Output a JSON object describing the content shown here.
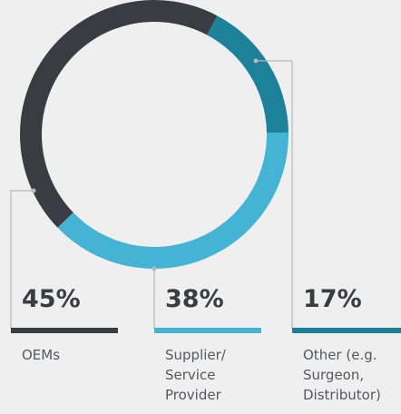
{
  "chart_data": {
    "type": "pie",
    "donut": true,
    "categories": [
      "OEMs",
      "Supplier/ Service Provider",
      "Other (e.g. Surgeon, Distributor)"
    ],
    "values": [
      45,
      38,
      17
    ],
    "value_labels": [
      "45%",
      "38%",
      "17%"
    ],
    "colors": [
      "#393c42",
      "#45b3d3",
      "#1d8199"
    ]
  }
}
